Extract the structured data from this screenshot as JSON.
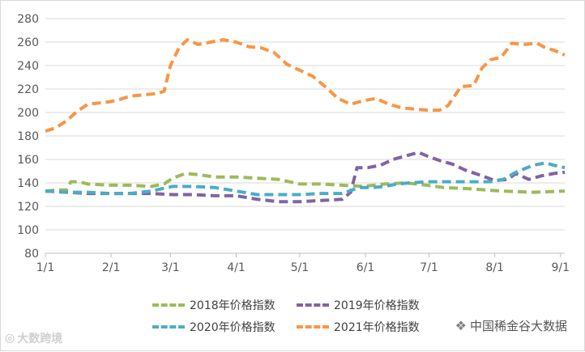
{
  "chart_data": {
    "type": "line",
    "title": "",
    "xlabel": "",
    "ylabel": "",
    "ylim": [
      80,
      280
    ],
    "y_ticks": [
      "80",
      "100",
      "120",
      "140",
      "160",
      "180",
      "200",
      "220",
      "240",
      "260",
      "280"
    ],
    "x_tick_labels": [
      "1/1",
      "2/1",
      "3/1",
      "4/1",
      "5/1",
      "6/1",
      "7/1",
      "8/1",
      "9/1"
    ],
    "x_tick_days": [
      0,
      31,
      59,
      90,
      120,
      151,
      181,
      212,
      243
    ],
    "xlim_days": [
      0,
      245
    ],
    "grid": "horizontal",
    "legend_placement": "bottom",
    "series": [
      {
        "name": "2018年价格指数",
        "color": "#9bbb59",
        "points": [
          [
            0,
            133
          ],
          [
            6,
            134
          ],
          [
            10,
            134
          ],
          [
            12,
            141
          ],
          [
            16,
            141
          ],
          [
            20,
            139
          ],
          [
            30,
            138
          ],
          [
            40,
            138
          ],
          [
            50,
            137
          ],
          [
            56,
            139
          ],
          [
            60,
            144
          ],
          [
            66,
            148
          ],
          [
            72,
            147
          ],
          [
            80,
            145
          ],
          [
            90,
            145
          ],
          [
            100,
            144
          ],
          [
            110,
            143
          ],
          [
            120,
            139
          ],
          [
            130,
            139
          ],
          [
            140,
            138
          ],
          [
            150,
            137
          ],
          [
            160,
            139
          ],
          [
            170,
            140
          ],
          [
            180,
            138
          ],
          [
            188,
            136
          ],
          [
            200,
            135
          ],
          [
            215,
            133
          ],
          [
            230,
            132
          ],
          [
            245,
            133
          ]
        ]
      },
      {
        "name": "2019年价格指数",
        "color": "#8064a2",
        "points": [
          [
            0,
            133
          ],
          [
            10,
            132
          ],
          [
            20,
            131
          ],
          [
            30,
            131
          ],
          [
            40,
            131
          ],
          [
            50,
            131
          ],
          [
            60,
            130
          ],
          [
            70,
            130
          ],
          [
            80,
            129
          ],
          [
            90,
            129
          ],
          [
            100,
            126
          ],
          [
            110,
            124
          ],
          [
            120,
            124
          ],
          [
            130,
            125
          ],
          [
            140,
            126
          ],
          [
            144,
            132
          ],
          [
            147,
            153
          ],
          [
            152,
            153
          ],
          [
            158,
            155
          ],
          [
            164,
            160
          ],
          [
            170,
            163
          ],
          [
            176,
            166
          ],
          [
            180,
            163
          ],
          [
            186,
            159
          ],
          [
            192,
            156
          ],
          [
            198,
            151
          ],
          [
            206,
            146
          ],
          [
            212,
            142
          ],
          [
            218,
            143
          ],
          [
            222,
            148
          ],
          [
            228,
            143
          ],
          [
            234,
            146
          ],
          [
            240,
            148
          ],
          [
            245,
            149
          ]
        ]
      },
      {
        "name": "2020年价格指数",
        "color": "#4bacc6",
        "points": [
          [
            0,
            133
          ],
          [
            10,
            132
          ],
          [
            20,
            132
          ],
          [
            30,
            131
          ],
          [
            40,
            131
          ],
          [
            50,
            133
          ],
          [
            60,
            137
          ],
          [
            70,
            137
          ],
          [
            80,
            136
          ],
          [
            90,
            133
          ],
          [
            100,
            130
          ],
          [
            110,
            130
          ],
          [
            120,
            130
          ],
          [
            130,
            131
          ],
          [
            140,
            131
          ],
          [
            148,
            136
          ],
          [
            154,
            136
          ],
          [
            160,
            137
          ],
          [
            166,
            139
          ],
          [
            172,
            140
          ],
          [
            180,
            141
          ],
          [
            190,
            141
          ],
          [
            200,
            141
          ],
          [
            210,
            141
          ],
          [
            216,
            143
          ],
          [
            222,
            149
          ],
          [
            230,
            155
          ],
          [
            236,
            157
          ],
          [
            240,
            155
          ],
          [
            245,
            153
          ]
        ]
      },
      {
        "name": "2021年价格指数",
        "color": "#f79646",
        "points": [
          [
            0,
            184
          ],
          [
            5,
            187
          ],
          [
            10,
            193
          ],
          [
            15,
            201
          ],
          [
            20,
            207
          ],
          [
            25,
            208
          ],
          [
            30,
            209
          ],
          [
            35,
            211
          ],
          [
            40,
            214
          ],
          [
            46,
            215
          ],
          [
            52,
            216
          ],
          [
            56,
            218
          ],
          [
            59,
            240
          ],
          [
            63,
            255
          ],
          [
            67,
            262
          ],
          [
            72,
            258
          ],
          [
            78,
            260
          ],
          [
            84,
            262
          ],
          [
            90,
            260
          ],
          [
            96,
            256
          ],
          [
            102,
            255
          ],
          [
            108,
            251
          ],
          [
            114,
            241
          ],
          [
            120,
            236
          ],
          [
            126,
            231
          ],
          [
            132,
            222
          ],
          [
            138,
            212
          ],
          [
            144,
            207
          ],
          [
            150,
            210
          ],
          [
            156,
            212
          ],
          [
            162,
            207
          ],
          [
            168,
            204
          ],
          [
            174,
            203
          ],
          [
            180,
            202
          ],
          [
            186,
            202
          ],
          [
            190,
            206
          ],
          [
            196,
            222
          ],
          [
            202,
            223
          ],
          [
            206,
            238
          ],
          [
            210,
            245
          ],
          [
            215,
            247
          ],
          [
            220,
            259
          ],
          [
            226,
            258
          ],
          [
            232,
            259
          ],
          [
            236,
            255
          ],
          [
            240,
            253
          ],
          [
            245,
            249
          ]
        ]
      }
    ]
  },
  "legend": [
    {
      "label": "2018年价格指数",
      "color": "#9bbb59"
    },
    {
      "label": "2019年价格指数",
      "color": "#8064a2"
    },
    {
      "label": "2020年价格指数",
      "color": "#4bacc6"
    },
    {
      "label": "2021年价格指数",
      "color": "#f79646"
    }
  ],
  "watermark_left": {
    "icon": "weibo-icon",
    "text": "大数跨境"
  },
  "watermark_right": {
    "icon": "wechat-icon",
    "text": "中国稀金谷大数据"
  }
}
